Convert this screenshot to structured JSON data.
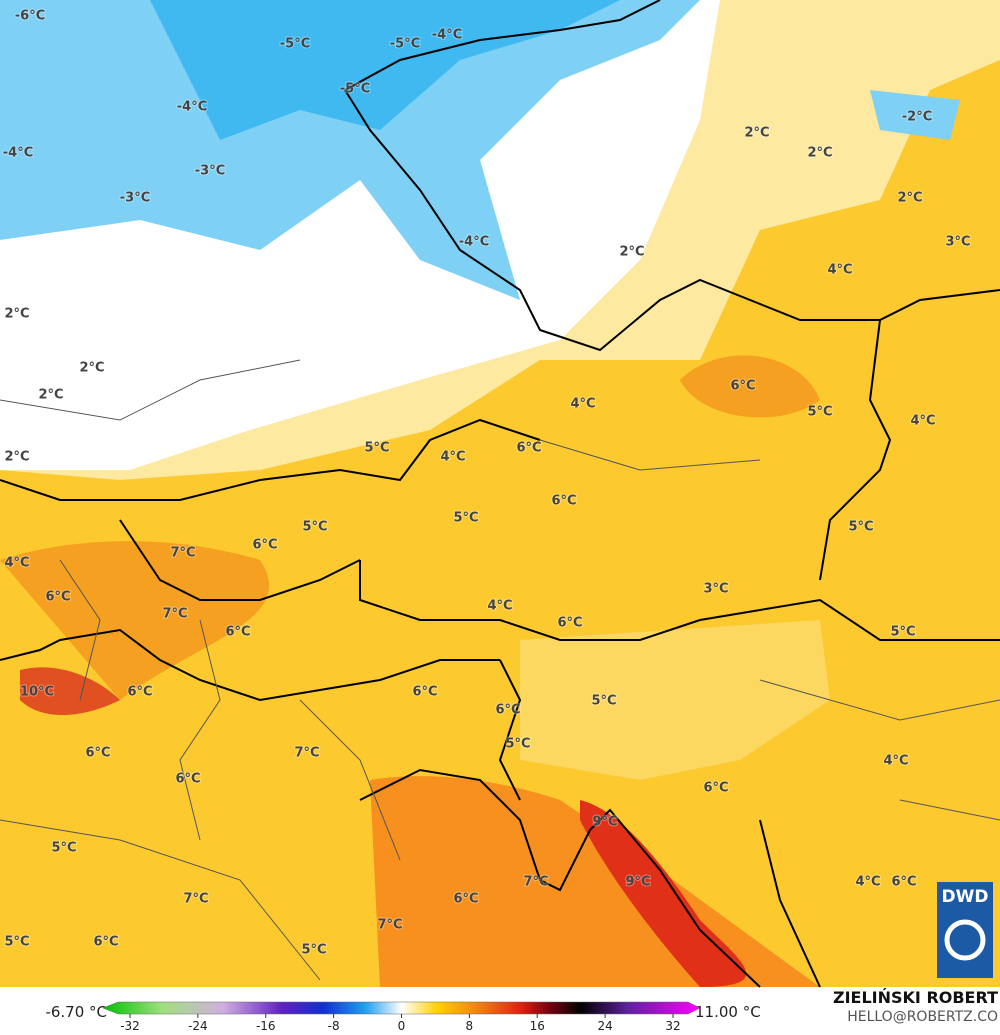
{
  "map": {
    "labels": [
      "-6°C",
      "-5°C",
      "-5°C",
      "-4°C",
      "-5°C",
      "-4°C",
      "-4°C",
      "-3°C",
      "-3°C",
      "-2°C",
      "2°C",
      "2°C",
      "2°C",
      "-4°C",
      "2°C",
      "3°C",
      "4°C",
      "2°C",
      "2°C",
      "2°C",
      "6°C",
      "4°C",
      "5°C",
      "4°C",
      "5°C",
      "4°C",
      "6°C",
      "2°C",
      "6°C",
      "5°C",
      "5°C",
      "5°C",
      "7°C",
      "6°C",
      "4°C",
      "3°C",
      "6°C",
      "4°C",
      "7°C",
      "6°C",
      "6°C",
      "5°C",
      "10°C",
      "6°C",
      "6°C",
      "5°C",
      "6°C",
      "5°C",
      "6°C",
      "7°C",
      "6°C",
      "4°C",
      "6°C",
      "9°C",
      "5°C",
      "9°C",
      "7°C",
      "4°C",
      "6°C",
      "7°C",
      "6°C",
      "7°C",
      "5°C",
      "6°C",
      "5°C"
    ],
    "logo": "DWD"
  },
  "footer": {
    "min": "-6.70 °C",
    "max": "11.00 °C",
    "author": "ZIELIŃSKI ROBERT",
    "email": "HELLO@ROBERTZ.CO"
  },
  "colorbar": {
    "ticks": [
      -32,
      -24,
      -16,
      -8,
      0,
      8,
      16,
      24,
      32
    ]
  }
}
